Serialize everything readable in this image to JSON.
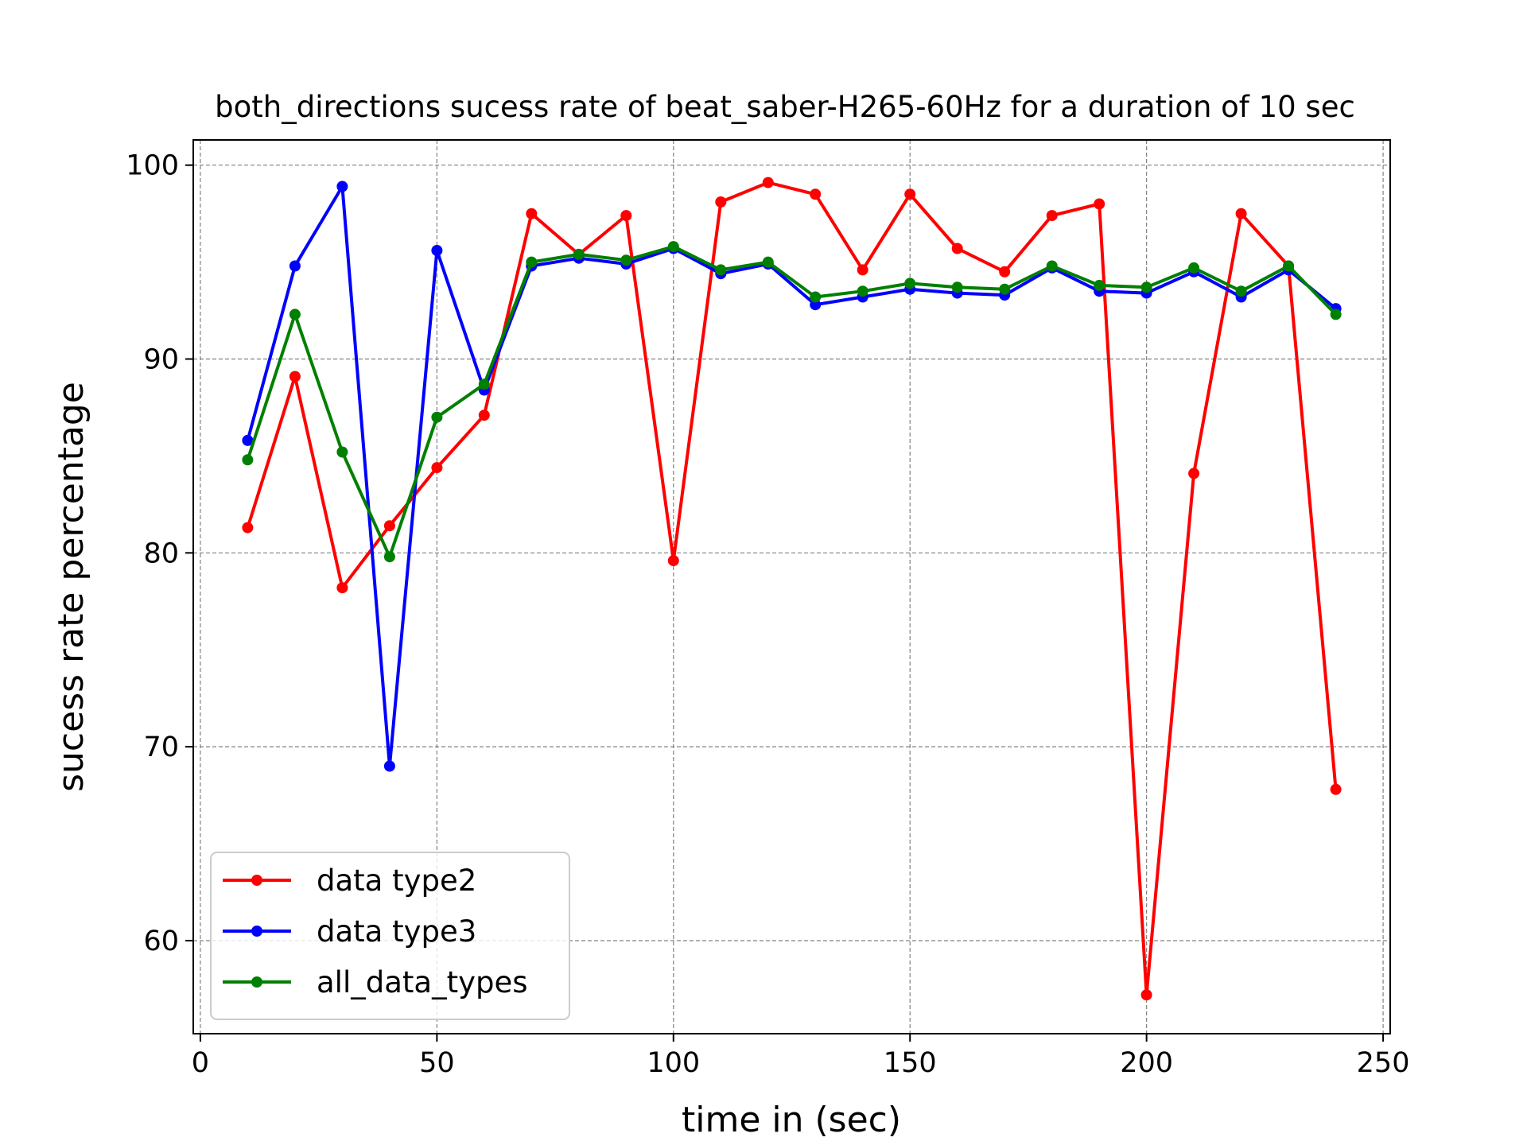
{
  "chart_data": {
    "type": "line",
    "title": "both_directions sucess rate of beat_saber-H265-60Hz for a duration of 10 sec",
    "xlabel": "time in (sec)",
    "ylabel": "sucess rate percentage",
    "xlim": [
      -1.5,
      251.5
    ],
    "ylim": [
      55.2,
      101.3
    ],
    "xticks": [
      0,
      50,
      100,
      150,
      200,
      250
    ],
    "yticks": [
      60,
      70,
      80,
      90,
      100
    ],
    "grid": true,
    "legend_position": "lower-left",
    "x": [
      10,
      20,
      30,
      40,
      50,
      60,
      70,
      80,
      90,
      100,
      110,
      120,
      130,
      140,
      150,
      160,
      170,
      180,
      190,
      200,
      210,
      220,
      230,
      240
    ],
    "series": [
      {
        "name": "data type2",
        "color": "#ff0000",
        "values": [
          81.3,
          89.1,
          78.2,
          81.4,
          84.4,
          87.1,
          97.5,
          95.4,
          97.4,
          79.6,
          98.1,
          99.1,
          98.5,
          94.6,
          98.5,
          95.7,
          94.5,
          97.4,
          98.0,
          57.2,
          84.1,
          97.5,
          94.8,
          67.8
        ]
      },
      {
        "name": "data type3",
        "color": "#0000ff",
        "values": [
          85.8,
          94.8,
          98.9,
          69.0,
          95.6,
          88.4,
          94.8,
          95.2,
          94.9,
          95.7,
          94.4,
          94.9,
          92.8,
          93.2,
          93.6,
          93.4,
          93.3,
          94.7,
          93.5,
          93.4,
          94.5,
          93.2,
          94.6,
          92.6
        ]
      },
      {
        "name": "all_data_types",
        "color": "#008000",
        "values": [
          84.8,
          92.3,
          85.2,
          79.8,
          87.0,
          88.7,
          95.0,
          95.4,
          95.1,
          95.8,
          94.6,
          95.0,
          93.2,
          93.5,
          93.9,
          93.7,
          93.6,
          94.8,
          93.8,
          93.7,
          94.7,
          93.5,
          94.8,
          92.3
        ]
      }
    ]
  }
}
